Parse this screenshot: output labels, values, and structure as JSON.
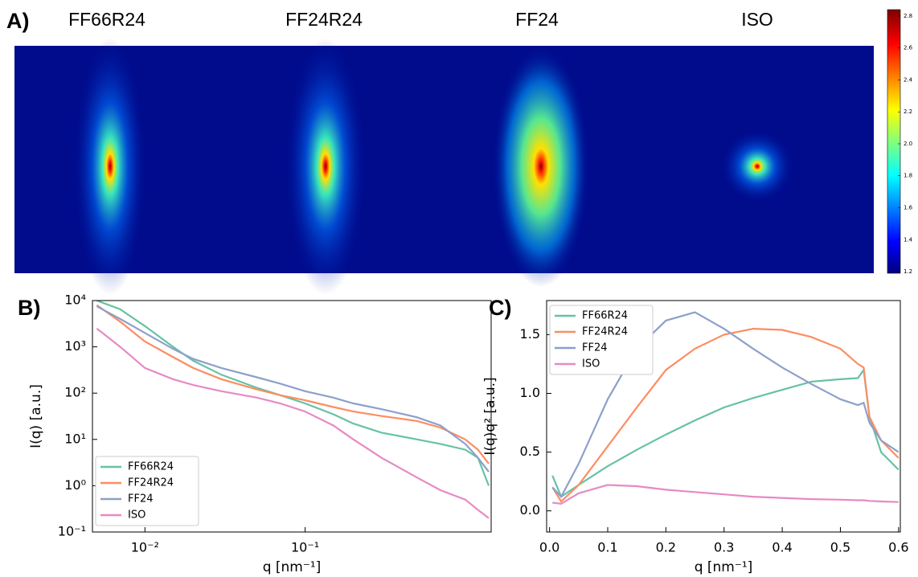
{
  "chart_data": [
    {
      "type": "image",
      "label": "A)",
      "titles": [
        "FF66R24",
        "FF24R24",
        "FF24",
        "ISO"
      ],
      "ylim": [
        1.19,
        2.84
      ],
      "yticks": [
        1.2,
        1.4,
        1.6,
        1.8,
        {
          "value": 2,
          "label": "2.0"
        },
        2.2,
        2.4,
        2.6,
        2.8
      ]
    },
    {
      "type": "line",
      "label": "B)",
      "xlabel": "q [nm⁻¹]",
      "ylabel": "I(q) [a.u.]",
      "xscale": "log",
      "yscale": "log",
      "xlim": [
        0.0047,
        1.45
      ],
      "ylim": [
        0.1,
        10000
      ],
      "xticks": [
        {
          "value": 0.01,
          "label": "10⁻²"
        },
        {
          "value": 0.1,
          "label": "10⁻¹"
        }
      ],
      "yticks": [
        {
          "value": 0.1,
          "label": "10⁻¹"
        },
        {
          "value": 1,
          "label": "10⁰"
        },
        {
          "value": 10,
          "label": "10¹"
        },
        {
          "value": 100,
          "label": "10²"
        },
        {
          "value": 1000,
          "label": "10³"
        },
        {
          "value": 10000,
          "label": "10⁴"
        }
      ],
      "legend": "lower left",
      "x": [
        0.005,
        0.007,
        0.01,
        0.015,
        0.02,
        0.03,
        0.05,
        0.07,
        0.1,
        0.15,
        0.2,
        0.3,
        0.5,
        0.7,
        1.0,
        1.2,
        1.4
      ],
      "series": [
        {
          "name": "FF66R24",
          "color": "#66c2a5",
          "values": [
            10000,
            6500,
            2800,
            1000,
            500,
            250,
            130,
            90,
            60,
            35,
            22,
            14,
            10,
            8,
            6,
            4,
            1
          ]
        },
        {
          "name": "FF24R24",
          "color": "#fc8d62",
          "values": [
            8000,
            3500,
            1300,
            600,
            350,
            200,
            120,
            90,
            70,
            50,
            40,
            32,
            25,
            18,
            10,
            6,
            3
          ]
        },
        {
          "name": "FF24",
          "color": "#8da0cb",
          "values": [
            7500,
            4000,
            2000,
            900,
            550,
            350,
            220,
            160,
            110,
            80,
            60,
            45,
            30,
            20,
            8,
            4,
            2
          ]
        },
        {
          "name": "ISO",
          "color": "#e78ac3",
          "values": [
            2500,
            1000,
            350,
            200,
            150,
            110,
            80,
            60,
            40,
            20,
            10,
            4,
            1.5,
            0.8,
            0.5,
            0.3,
            0.2
          ]
        }
      ]
    },
    {
      "type": "line",
      "label": "C)",
      "xlabel": "q [nm⁻¹]",
      "ylabel": "I(q)q² [a.u.]",
      "xscale": "linear",
      "yscale": "linear",
      "xlim": [
        -0.005,
        0.603
      ],
      "ylim": [
        -0.18,
        1.79
      ],
      "xticks": [
        {
          "value": 0,
          "label": "0.0"
        },
        0.1,
        0.2,
        0.3,
        0.4,
        0.5,
        0.6
      ],
      "yticks": [
        {
          "value": 0,
          "label": "0.0"
        },
        0.5,
        {
          "value": 1,
          "label": "1.0"
        },
        1.5
      ],
      "legend": "upper left",
      "x": [
        0.005,
        0.02,
        0.05,
        0.1,
        0.15,
        0.2,
        0.25,
        0.3,
        0.35,
        0.4,
        0.45,
        0.5,
        0.53,
        0.54,
        0.55,
        0.57,
        0.6
      ],
      "series": [
        {
          "name": "FF66R24",
          "color": "#66c2a5",
          "values": [
            0.3,
            0.12,
            0.22,
            0.38,
            0.52,
            0.65,
            0.77,
            0.88,
            0.96,
            1.03,
            1.1,
            1.12,
            1.13,
            1.2,
            0.8,
            0.5,
            0.35
          ]
        },
        {
          "name": "FF24R24",
          "color": "#fc8d62",
          "values": [
            0.2,
            0.08,
            0.22,
            0.55,
            0.88,
            1.2,
            1.38,
            1.5,
            1.55,
            1.54,
            1.48,
            1.38,
            1.25,
            1.22,
            0.8,
            0.6,
            0.45
          ]
        },
        {
          "name": "FF24",
          "color": "#8da0cb",
          "values": [
            0.2,
            0.12,
            0.4,
            0.95,
            1.38,
            1.62,
            1.69,
            1.55,
            1.38,
            1.22,
            1.08,
            0.95,
            0.9,
            0.92,
            0.75,
            0.6,
            0.5
          ]
        },
        {
          "name": "ISO",
          "color": "#e78ac3",
          "values": [
            0.07,
            0.06,
            0.15,
            0.22,
            0.21,
            0.18,
            0.16,
            0.14,
            0.12,
            0.11,
            0.1,
            0.095,
            0.09,
            0.09,
            0.085,
            0.08,
            0.075
          ]
        }
      ]
    }
  ]
}
